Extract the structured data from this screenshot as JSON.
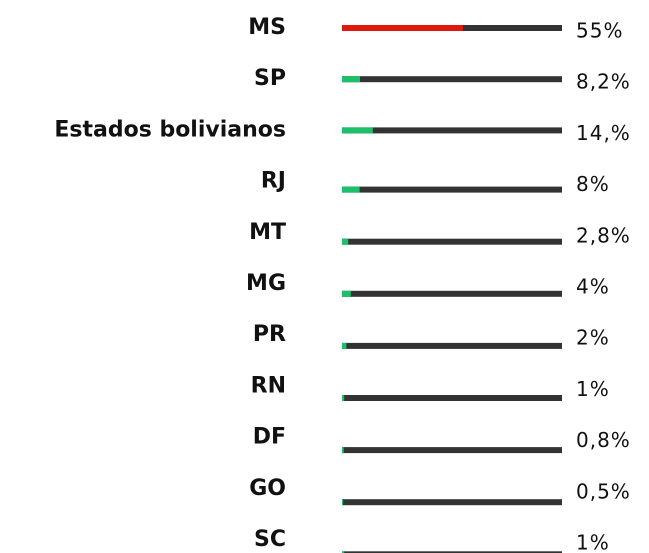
{
  "chart_data": {
    "type": "bar",
    "orientation": "horizontal",
    "categories": [
      "MS",
      "SP",
      "Estados bolivianos",
      "RJ",
      "MT",
      "MG",
      "PR",
      "RN",
      "DF",
      "GO",
      "SC"
    ],
    "values": [
      55,
      8.2,
      14,
      8,
      2.8,
      4,
      2,
      1,
      0.8,
      0.5,
      1
    ],
    "value_labels": [
      "55%",
      "8,2%",
      "14,%",
      "8%",
      "2,8%",
      "4%",
      "2%",
      "1%",
      "0,8%",
      "0,5%",
      "1%"
    ],
    "colors": [
      "#e0190f",
      "#1cc06a",
      "#1cc06a",
      "#1cc06a",
      "#1cc06a",
      "#1cc06a",
      "#1cc06a",
      "#1cc06a",
      "#1cc06a",
      "#1cc06a",
      "#1cc06a"
    ],
    "track_color": "#333333",
    "xlim": [
      0,
      100
    ]
  }
}
